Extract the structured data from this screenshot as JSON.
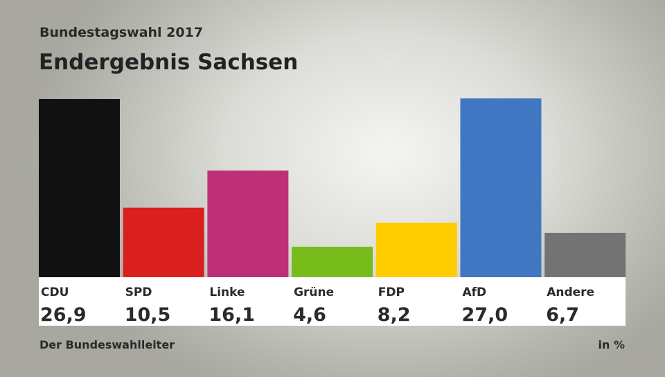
{
  "header": {
    "subtitle": "Bundestagswahl 2017",
    "title": "Endergebnis Sachsen"
  },
  "footer": {
    "source": "Der Bundeswahlleiter",
    "unit": "in %"
  },
  "chart_data": {
    "type": "bar",
    "title": "Endergebnis Sachsen",
    "subtitle": "Bundestagswahl 2017",
    "categories": [
      "CDU",
      "SPD",
      "Linke",
      "Grüne",
      "FDP",
      "AfD",
      "Andere"
    ],
    "values": [
      26.9,
      10.5,
      16.1,
      4.6,
      8.2,
      27.0,
      6.7
    ],
    "value_labels": [
      "26,9",
      "10,5",
      "16,1",
      "4,6",
      "8,2",
      "27,0",
      "6,7"
    ],
    "colors": [
      "#111111",
      "#d9201e",
      "#bd3075",
      "#78bc1b",
      "#ffcc00",
      "#4176c2",
      "#737373"
    ],
    "unit": "in %",
    "ylim": [
      0,
      27
    ],
    "grid": false,
    "legend": "none"
  }
}
